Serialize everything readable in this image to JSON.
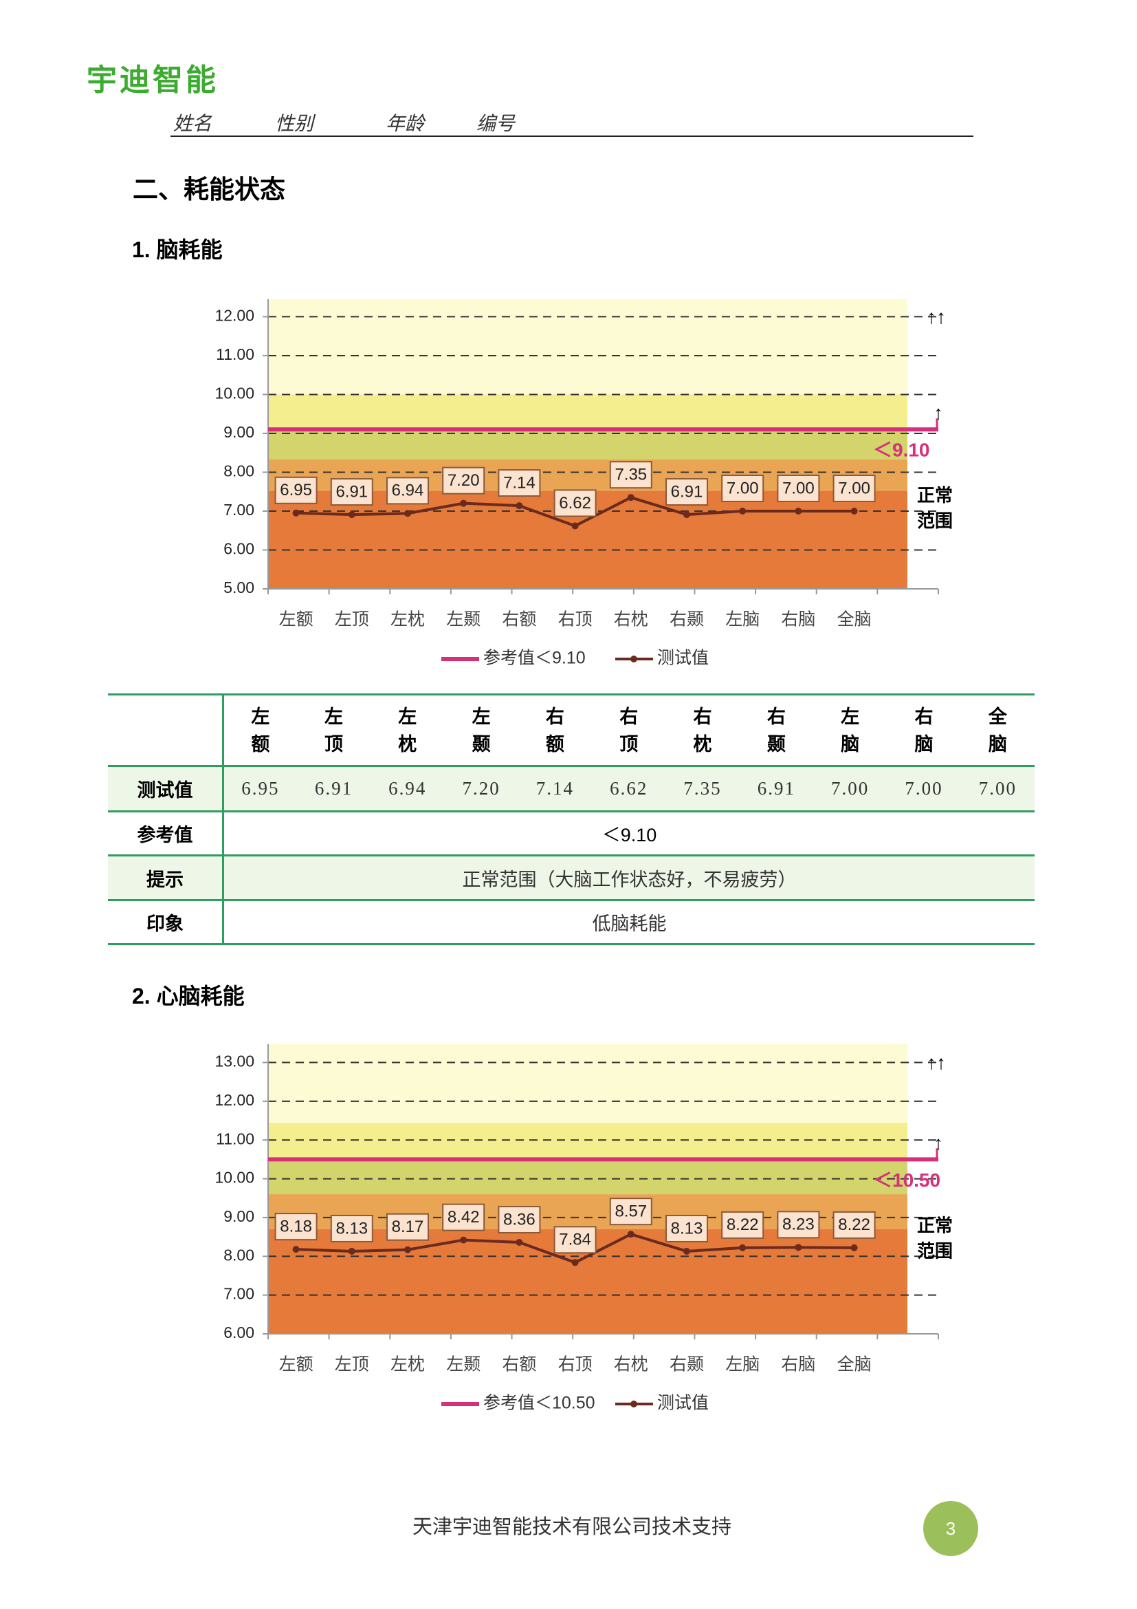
{
  "header": {
    "logo": "宇迪智能",
    "fields": [
      "姓名",
      "性别",
      "年龄",
      "编号"
    ]
  },
  "section_title": "二、耗能状态",
  "chart_data": [
    {
      "type": "line",
      "title": "1. 脑耗能",
      "categories": [
        "左额",
        "左顶",
        "左枕",
        "左颞",
        "右额",
        "右顶",
        "右枕",
        "右颞",
        "左脑",
        "右脑",
        "全脑"
      ],
      "series": [
        {
          "name": "测试值",
          "color": "#6b2a1e",
          "values": [
            6.95,
            6.91,
            6.94,
            7.2,
            7.14,
            6.62,
            7.35,
            6.91,
            7.0,
            7.0,
            7.0
          ],
          "value_labels": [
            "6.95",
            "6.91",
            "6.94",
            "7.20",
            "7.14",
            "6.62",
            "7.35",
            "6.91",
            "7.00",
            "7.00",
            "7.00"
          ]
        }
      ],
      "reference": {
        "name": "参考值＜9.10",
        "label": "＜9.10",
        "value": 9.1,
        "color": "#d6307a"
      },
      "ylim": [
        5,
        12.45
      ],
      "yticks": [
        {
          "value": 5,
          "label": "5.00"
        },
        {
          "value": 6,
          "label": "6.00"
        },
        {
          "value": 7,
          "label": "7.00"
        },
        {
          "value": 8,
          "label": "8.00"
        },
        {
          "value": 9,
          "label": "9.00"
        },
        {
          "value": 10,
          "label": "10.00"
        },
        {
          "value": 11,
          "label": "11.00"
        },
        {
          "value": 12,
          "label": "12.00"
        }
      ],
      "grid": true,
      "annotations": [
        "↑↑",
        "↑",
        "正常",
        "范围"
      ],
      "bands": [
        {
          "from": 10,
          "to": 12.45,
          "color": "#fdfbd4"
        },
        {
          "from": 9.1,
          "to": 10,
          "color": "#f5ee8f"
        },
        {
          "from": 8.33,
          "to": 9.1,
          "color": "#d3d46c"
        },
        {
          "from": 7.52,
          "to": 8.33,
          "color": "#e9a553"
        },
        {
          "from": 5,
          "to": 7.52,
          "color": "#e57a3b"
        }
      ]
    },
    {
      "type": "line",
      "title": "2. 心脑耗能",
      "categories": [
        "左额",
        "左顶",
        "左枕",
        "左颞",
        "右额",
        "右顶",
        "右枕",
        "右颞",
        "左脑",
        "右脑",
        "全脑"
      ],
      "series": [
        {
          "name": "测试值",
          "color": "#6b2a1e",
          "values": [
            8.18,
            8.13,
            8.17,
            8.42,
            8.36,
            7.84,
            8.57,
            8.13,
            8.22,
            8.23,
            8.22
          ]
        }
      ],
      "reference": {
        "name": "参考值＜10.50",
        "label": "＜10.50",
        "value": 10.5,
        "color": "#d6307a"
      },
      "ylim": [
        6,
        13.47
      ],
      "yticks": [
        {
          "value": 6,
          "label": "6.00"
        },
        {
          "value": 7,
          "label": "7.00"
        },
        {
          "value": 8,
          "label": "8.00"
        },
        {
          "value": 9,
          "label": "9.00"
        },
        {
          "value": 10,
          "label": "10.00"
        },
        {
          "value": 11,
          "label": "11.00"
        },
        {
          "value": 12,
          "label": "12.00"
        },
        {
          "value": 13,
          "label": "13.00"
        }
      ],
      "grid": true,
      "annotations": [
        "↑↑",
        "↑",
        "正常",
        "范围"
      ],
      "bands": [
        {
          "from": 11.44,
          "to": 13.47,
          "color": "#fdfbd4"
        },
        {
          "from": 10.5,
          "to": 11.44,
          "color": "#f5ee8f"
        },
        {
          "from": 9.6,
          "to": 10.5,
          "color": "#d3d46c"
        },
        {
          "from": 8.7,
          "to": 9.6,
          "color": "#e9a553"
        },
        {
          "from": 6,
          "to": 8.7,
          "color": "#e57a3b"
        }
      ]
    }
  ],
  "table": {
    "header": [
      "左额",
      "左顶",
      "左枕",
      "左颞",
      "右额",
      "右顶",
      "右枕",
      "右颞",
      "左脑",
      "右脑",
      "全脑"
    ],
    "rows": [
      {
        "label": "测试值",
        "values": [
          "6.95",
          "6.91",
          "6.94",
          "7.20",
          "7.14",
          "6.62",
          "7.35",
          "6.91",
          "7.00",
          "7.00",
          "7.00"
        ]
      },
      {
        "label": "参考值",
        "value": "＜9.10"
      },
      {
        "label": "提示",
        "value": "正常范围（大脑工作状态好，不易疲劳）"
      },
      {
        "label": "印象",
        "value": "低脑耗能"
      }
    ]
  },
  "footer": {
    "text": "天津宇迪智能技术有限公司技术支持",
    "page": 3
  }
}
